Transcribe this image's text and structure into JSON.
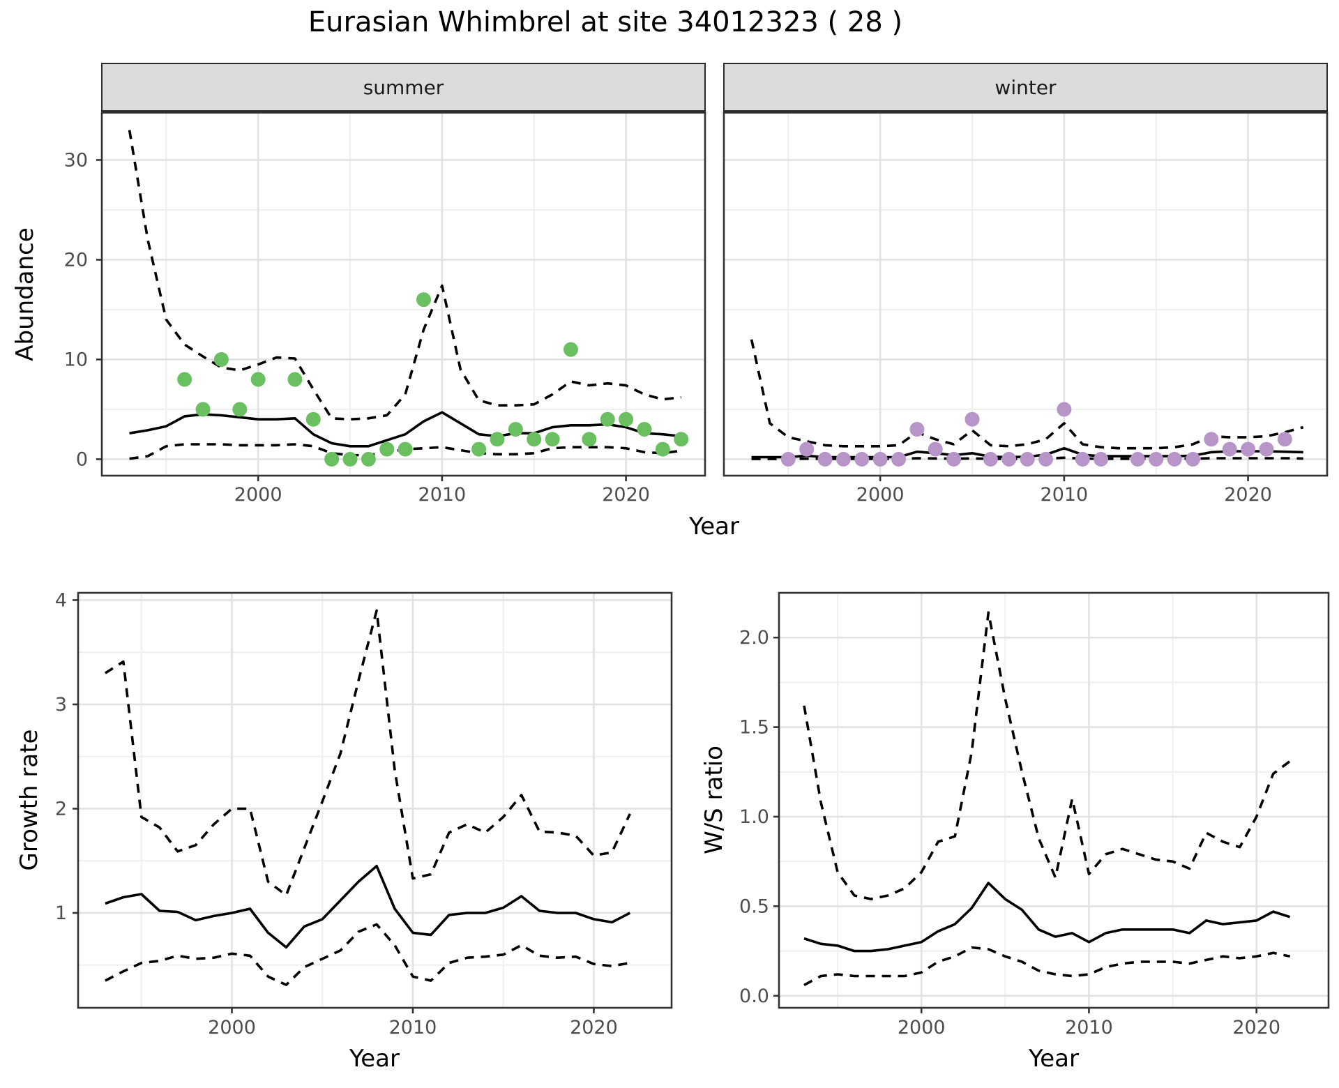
{
  "title": "Eurasian Whimbrel at site 34012323 ( 28 )",
  "facets": {
    "summer_label": "summer",
    "winter_label": "winter"
  },
  "axes": {
    "abundance_label": "Abundance",
    "growth_label": "Growth rate",
    "ws_label": "W/S ratio",
    "year_label": "Year"
  },
  "colors": {
    "summer_point": "#6abf60",
    "winter_point": "#b795c8",
    "line": "#000000",
    "grid_major": "#e2e2e2",
    "grid_minor": "#f0f0f0",
    "panel_border": "#333333",
    "strip_bg": "#dcdcdc",
    "tick_text": "#4d4d4d"
  },
  "chart_data": [
    {
      "panel": "summer",
      "type": "line+scatter",
      "facet": "summer",
      "ylabel": "Abundance",
      "xlabel": "Year",
      "xlim": [
        1991.5,
        2024.3
      ],
      "ylim": [
        -1.65,
        34.75
      ],
      "x_major": [
        2000,
        2010,
        2020
      ],
      "x_minor": [
        1995,
        2005,
        2015
      ],
      "y_major": [
        0,
        10,
        20,
        30
      ],
      "y_minor": [
        5,
        15,
        25
      ],
      "x_tick_labels": [
        "2000",
        "2010",
        "2020"
      ],
      "y_tick_labels": [
        "0",
        "10",
        "20",
        "30"
      ],
      "x": [
        1993,
        1994,
        1995,
        1996,
        1997,
        1998,
        1999,
        2000,
        2001,
        2002,
        2003,
        2004,
        2005,
        2006,
        2007,
        2008,
        2009,
        2010,
        2011,
        2012,
        2013,
        2014,
        2015,
        2016,
        2017,
        2018,
        2019,
        2020,
        2021,
        2022,
        2023
      ],
      "series": [
        {
          "name": "mean",
          "style": "solid",
          "values": [
            2.6,
            2.9,
            3.3,
            4.3,
            4.5,
            4.4,
            4.2,
            4.0,
            4.0,
            4.1,
            2.5,
            1.6,
            1.3,
            1.3,
            1.9,
            2.5,
            3.8,
            4.7,
            3.6,
            2.5,
            2.3,
            2.6,
            2.6,
            3.2,
            3.4,
            3.4,
            3.5,
            3.2,
            2.6,
            2.5,
            2.3
          ]
        },
        {
          "name": "upper_ci",
          "style": "dashed",
          "values": [
            33,
            22,
            14,
            11.5,
            10.3,
            9.2,
            8.9,
            9.5,
            10.2,
            10.1,
            7.0,
            4.1,
            4.0,
            4.1,
            4.4,
            6.5,
            13,
            17.4,
            9.0,
            5.9,
            5.4,
            5.4,
            5.5,
            6.5,
            7.8,
            7.4,
            7.6,
            7.4,
            6.5,
            6.0,
            6.2
          ]
        },
        {
          "name": "lower_ci",
          "style": "dashed",
          "values": [
            0.05,
            0.3,
            1.3,
            1.5,
            1.5,
            1.5,
            1.4,
            1.4,
            1.4,
            1.5,
            1.3,
            0.6,
            0.4,
            0.4,
            0.7,
            1.0,
            1.1,
            1.2,
            0.9,
            0.6,
            0.5,
            0.5,
            0.6,
            1.1,
            1.2,
            1.2,
            1.2,
            1.1,
            0.7,
            0.6,
            0.85
          ]
        }
      ],
      "points": {
        "x": [
          1996,
          1997,
          1998,
          1999,
          2000,
          2002,
          2003,
          2004,
          2005,
          2006,
          2007,
          2008,
          2009,
          2012,
          2013,
          2014,
          2015,
          2016,
          2017,
          2018,
          2019,
          2020,
          2021,
          2022,
          2023
        ],
        "y": [
          8,
          5,
          10,
          5,
          8,
          8,
          4,
          0,
          0,
          0,
          1,
          1,
          16,
          1,
          2,
          3,
          2,
          2,
          11,
          2,
          4,
          4,
          3,
          1,
          2
        ]
      },
      "point_color_key": "summer_point"
    },
    {
      "panel": "winter",
      "type": "line+scatter",
      "facet": "winter",
      "ylabel": "Abundance",
      "xlabel": "Year",
      "xlim": [
        1991.5,
        2024.3
      ],
      "ylim": [
        -1.65,
        34.75
      ],
      "x_major": [
        2000,
        2010,
        2020
      ],
      "x_minor": [
        1995,
        2005,
        2015
      ],
      "y_major": [
        0,
        10,
        20,
        30
      ],
      "y_minor": [
        5,
        15,
        25
      ],
      "x_tick_labels": [
        "2000",
        "2010",
        "2020"
      ],
      "y_tick_labels": [],
      "x": [
        1993,
        1994,
        1995,
        1996,
        1997,
        1998,
        1999,
        2000,
        2001,
        2002,
        2003,
        2004,
        2005,
        2006,
        2007,
        2008,
        2009,
        2010,
        2011,
        2012,
        2013,
        2014,
        2015,
        2016,
        2017,
        2018,
        2019,
        2020,
        2021,
        2022,
        2023
      ],
      "series": [
        {
          "name": "mean",
          "style": "solid",
          "values": [
            0.2,
            0.2,
            0.2,
            0.35,
            0.2,
            0.2,
            0.2,
            0.2,
            0.2,
            0.75,
            0.6,
            0.4,
            0.6,
            0.25,
            0.2,
            0.25,
            0.45,
            1.1,
            0.45,
            0.3,
            0.3,
            0.3,
            0.3,
            0.3,
            0.35,
            0.7,
            0.8,
            0.8,
            0.8,
            0.75,
            0.7
          ]
        },
        {
          "name": "upper_ci",
          "style": "dashed",
          "values": [
            12,
            3.6,
            2.2,
            1.8,
            1.4,
            1.3,
            1.3,
            1.3,
            1.4,
            2.7,
            2.0,
            1.5,
            2.9,
            1.4,
            1.3,
            1.5,
            2.0,
            3.6,
            1.5,
            1.2,
            1.1,
            1.1,
            1.1,
            1.2,
            1.5,
            2.3,
            2.2,
            2.2,
            2.3,
            2.7,
            3.2
          ]
        },
        {
          "name": "lower_ci",
          "style": "dashed",
          "values": [
            0.02,
            0.02,
            0.02,
            0.05,
            0.03,
            0.03,
            0.03,
            0.03,
            0.03,
            0.1,
            0.08,
            0.05,
            0.08,
            0.04,
            0.03,
            0.04,
            0.06,
            0.15,
            0.06,
            0.04,
            0.04,
            0.04,
            0.04,
            0.04,
            0.05,
            0.1,
            0.1,
            0.1,
            0.1,
            0.1,
            0.07
          ]
        }
      ],
      "points": {
        "x": [
          1995,
          1996,
          1997,
          1998,
          1999,
          2000,
          2001,
          2002,
          2003,
          2004,
          2005,
          2006,
          2007,
          2008,
          2009,
          2010,
          2011,
          2012,
          2014,
          2015,
          2016,
          2017,
          2018,
          2019,
          2020,
          2021,
          2022
        ],
        "y": [
          0,
          1,
          0,
          0,
          0,
          0,
          0,
          3,
          1,
          0,
          4,
          0,
          0,
          0,
          0,
          5,
          0,
          0,
          0,
          0,
          0,
          0,
          2,
          1,
          1,
          1,
          2
        ]
      },
      "point_color_key": "winter_point"
    },
    {
      "panel": "growth",
      "type": "line",
      "ylabel": "Growth rate",
      "xlabel": "Year",
      "xlim": [
        1991.5,
        2024.3
      ],
      "ylim": [
        0.09,
        4.07
      ],
      "x_major": [
        2000,
        2010,
        2020
      ],
      "x_minor": [
        1995,
        2005,
        2015
      ],
      "y_major": [
        1,
        2,
        3,
        4
      ],
      "y_minor": [
        0.5,
        1.5,
        2.5,
        3.5
      ],
      "x_tick_labels": [
        "2000",
        "2010",
        "2020"
      ],
      "y_tick_labels": [
        "1",
        "2",
        "3",
        "4"
      ],
      "x": [
        1993,
        1994,
        1995,
        1996,
        1997,
        1998,
        1999,
        2000,
        2001,
        2002,
        2003,
        2004,
        2005,
        2006,
        2007,
        2008,
        2009,
        2010,
        2011,
        2012,
        2013,
        2014,
        2015,
        2016,
        2017,
        2018,
        2019,
        2020,
        2021,
        2022
      ],
      "series": [
        {
          "name": "mean",
          "style": "solid",
          "values": [
            1.09,
            1.15,
            1.18,
            1.02,
            1.01,
            0.93,
            0.97,
            1.0,
            1.04,
            0.81,
            0.67,
            0.87,
            0.94,
            1.12,
            1.3,
            1.45,
            1.04,
            0.81,
            0.79,
            0.98,
            1.0,
            1.0,
            1.05,
            1.16,
            1.02,
            1.0,
            1.0,
            0.94,
            0.91,
            1.0
          ]
        },
        {
          "name": "upper_ci",
          "style": "dashed",
          "values": [
            3.3,
            3.41,
            1.92,
            1.82,
            1.59,
            1.65,
            1.85,
            2.0,
            2.0,
            1.3,
            1.17,
            1.62,
            2.07,
            2.53,
            3.23,
            3.9,
            2.37,
            1.33,
            1.37,
            1.77,
            1.85,
            1.77,
            1.92,
            2.13,
            1.78,
            1.77,
            1.74,
            1.55,
            1.58,
            1.95
          ]
        },
        {
          "name": "lower_ci",
          "style": "dashed",
          "values": [
            0.35,
            0.44,
            0.52,
            0.54,
            0.59,
            0.56,
            0.57,
            0.61,
            0.59,
            0.39,
            0.31,
            0.48,
            0.56,
            0.64,
            0.82,
            0.89,
            0.69,
            0.39,
            0.35,
            0.52,
            0.57,
            0.58,
            0.6,
            0.69,
            0.59,
            0.57,
            0.58,
            0.51,
            0.49,
            0.52
          ]
        }
      ],
      "points": {
        "x": [],
        "y": []
      },
      "point_color_key": "line"
    },
    {
      "panel": "ws",
      "type": "line",
      "ylabel": "W/S ratio",
      "xlabel": "Year",
      "xlim": [
        1991.5,
        2024.3
      ],
      "ylim": [
        -0.067,
        2.25
      ],
      "x_major": [
        2000,
        2010,
        2020
      ],
      "x_minor": [
        1995,
        2005,
        2015
      ],
      "y_major": [
        0,
        0.5,
        1.0,
        1.5,
        2.0
      ],
      "y_minor": [
        0.25,
        0.75,
        1.25,
        1.75
      ],
      "x_tick_labels": [
        "2000",
        "2010",
        "2020"
      ],
      "y_tick_labels": [
        "0.0",
        "0.5",
        "1.0",
        "1.5",
        "2.0"
      ],
      "x": [
        1993,
        1994,
        1995,
        1996,
        1997,
        1998,
        1999,
        2000,
        2001,
        2002,
        2003,
        2004,
        2005,
        2006,
        2007,
        2008,
        2009,
        2010,
        2011,
        2012,
        2013,
        2014,
        2015,
        2016,
        2017,
        2018,
        2019,
        2020,
        2021,
        2022
      ],
      "series": [
        {
          "name": "mean",
          "style": "solid",
          "values": [
            0.32,
            0.29,
            0.28,
            0.25,
            0.25,
            0.26,
            0.28,
            0.3,
            0.36,
            0.4,
            0.49,
            0.63,
            0.54,
            0.48,
            0.37,
            0.33,
            0.35,
            0.3,
            0.35,
            0.37,
            0.37,
            0.37,
            0.37,
            0.35,
            0.42,
            0.4,
            0.41,
            0.42,
            0.47,
            0.44
          ]
        },
        {
          "name": "upper_ci",
          "style": "dashed",
          "values": [
            1.62,
            1.08,
            0.69,
            0.56,
            0.54,
            0.56,
            0.6,
            0.69,
            0.86,
            0.89,
            1.36,
            2.14,
            1.66,
            1.25,
            0.88,
            0.66,
            1.1,
            0.68,
            0.79,
            0.82,
            0.79,
            0.76,
            0.75,
            0.71,
            0.91,
            0.86,
            0.83,
            1.0,
            1.24,
            1.31
          ]
        },
        {
          "name": "lower_ci",
          "style": "dashed",
          "values": [
            0.06,
            0.11,
            0.12,
            0.11,
            0.11,
            0.11,
            0.11,
            0.13,
            0.19,
            0.22,
            0.27,
            0.26,
            0.22,
            0.19,
            0.14,
            0.12,
            0.11,
            0.12,
            0.16,
            0.18,
            0.19,
            0.19,
            0.19,
            0.18,
            0.2,
            0.22,
            0.21,
            0.22,
            0.24,
            0.22
          ]
        }
      ],
      "points": {
        "x": [],
        "y": []
      },
      "point_color_key": "line"
    }
  ]
}
